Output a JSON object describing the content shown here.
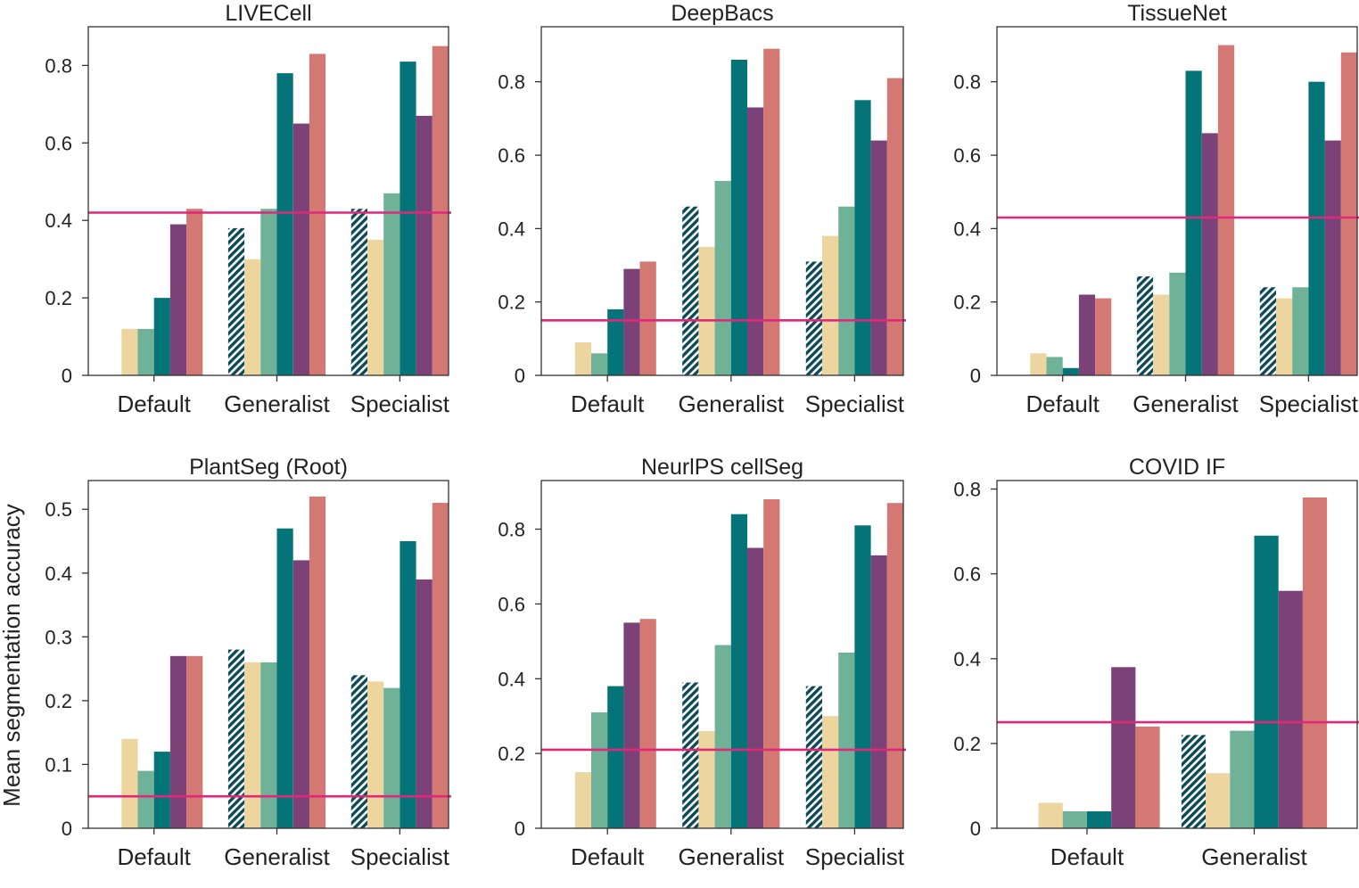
{
  "figure": {
    "ylabel": "Mean segmentation accuracy",
    "colors": {
      "hatched": "#0d4a57",
      "c1": "#ecd59e",
      "c2": "#6fb298",
      "c3": "#047478",
      "c4": "#7a4276",
      "c5": "#d47874",
      "baseline": "#e0287a",
      "axis": "#333333"
    }
  },
  "chart_data": [
    {
      "type": "bar",
      "title": "LIVECell",
      "categories": [
        "Default",
        "Generalist",
        "Specialist"
      ],
      "ylim": [
        0,
        0.9
      ],
      "yticks": [
        0,
        0.2,
        0.4,
        0.6,
        0.8
      ],
      "ytick_labels": [
        "0",
        "0.2",
        "0.4",
        "0.6",
        "0.8"
      ],
      "baseline": 0.42,
      "series": [
        {
          "name": "hatched",
          "values": [
            null,
            0.38,
            0.43
          ]
        },
        {
          "name": "c1",
          "values": [
            0.12,
            0.3,
            0.35
          ]
        },
        {
          "name": "c2",
          "values": [
            0.12,
            0.43,
            0.47
          ]
        },
        {
          "name": "c3",
          "values": [
            0.2,
            0.78,
            0.81
          ]
        },
        {
          "name": "c4",
          "values": [
            0.39,
            0.65,
            0.67
          ]
        },
        {
          "name": "c5",
          "values": [
            0.43,
            0.83,
            0.85
          ]
        }
      ]
    },
    {
      "type": "bar",
      "title": "DeepBacs",
      "categories": [
        "Default",
        "Generalist",
        "Specialist"
      ],
      "ylim": [
        0,
        0.95
      ],
      "yticks": [
        0,
        0.2,
        0.4,
        0.6,
        0.8
      ],
      "ytick_labels": [
        "0",
        "0.2",
        "0.4",
        "0.6",
        "0.8"
      ],
      "baseline": 0.15,
      "series": [
        {
          "name": "hatched",
          "values": [
            null,
            0.46,
            0.31
          ]
        },
        {
          "name": "c1",
          "values": [
            0.09,
            0.35,
            0.38
          ]
        },
        {
          "name": "c2",
          "values": [
            0.06,
            0.53,
            0.46
          ]
        },
        {
          "name": "c3",
          "values": [
            0.18,
            0.86,
            0.75
          ]
        },
        {
          "name": "c4",
          "values": [
            0.29,
            0.73,
            0.64
          ]
        },
        {
          "name": "c5",
          "values": [
            0.31,
            0.89,
            0.81
          ]
        }
      ]
    },
    {
      "type": "bar",
      "title": "TissueNet",
      "categories": [
        "Default",
        "Generalist",
        "Specialist"
      ],
      "ylim": [
        0,
        0.95
      ],
      "yticks": [
        0,
        0.2,
        0.4,
        0.6,
        0.8
      ],
      "ytick_labels": [
        "0",
        "0.2",
        "0.4",
        "0.6",
        "0.8"
      ],
      "baseline": 0.43,
      "series": [
        {
          "name": "hatched",
          "values": [
            null,
            0.27,
            0.24
          ]
        },
        {
          "name": "c1",
          "values": [
            0.06,
            0.22,
            0.21
          ]
        },
        {
          "name": "c2",
          "values": [
            0.05,
            0.28,
            0.24
          ]
        },
        {
          "name": "c3",
          "values": [
            0.02,
            0.83,
            0.8
          ]
        },
        {
          "name": "c4",
          "values": [
            0.22,
            0.66,
            0.64
          ]
        },
        {
          "name": "c5",
          "values": [
            0.21,
            0.9,
            0.88
          ]
        }
      ]
    },
    {
      "type": "bar",
      "title": "PlantSeg (Root)",
      "categories": [
        "Default",
        "Generalist",
        "Specialist"
      ],
      "ylim": [
        0,
        0.545
      ],
      "yticks": [
        0,
        0.1,
        0.2,
        0.3,
        0.4,
        0.5
      ],
      "ytick_labels": [
        "0",
        "0.1",
        "0.2",
        "0.3",
        "0.4",
        "0.5"
      ],
      "baseline": 0.05,
      "series": [
        {
          "name": "hatched",
          "values": [
            null,
            0.28,
            0.24
          ]
        },
        {
          "name": "c1",
          "values": [
            0.14,
            0.26,
            0.23
          ]
        },
        {
          "name": "c2",
          "values": [
            0.09,
            0.26,
            0.22
          ]
        },
        {
          "name": "c3",
          "values": [
            0.12,
            0.47,
            0.45
          ]
        },
        {
          "name": "c4",
          "values": [
            0.27,
            0.42,
            0.39
          ]
        },
        {
          "name": "c5",
          "values": [
            0.27,
            0.52,
            0.51
          ]
        }
      ]
    },
    {
      "type": "bar",
      "title": "NeurlPS cellSeg",
      "categories": [
        "Default",
        "Generalist",
        "Specialist"
      ],
      "ylim": [
        0,
        0.93
      ],
      "yticks": [
        0,
        0.2,
        0.4,
        0.6,
        0.8
      ],
      "ytick_labels": [
        "0",
        "0.2",
        "0.4",
        "0.6",
        "0.8"
      ],
      "baseline": 0.21,
      "series": [
        {
          "name": "hatched",
          "values": [
            null,
            0.39,
            0.38
          ]
        },
        {
          "name": "c1",
          "values": [
            0.15,
            0.26,
            0.3
          ]
        },
        {
          "name": "c2",
          "values": [
            0.31,
            0.49,
            0.47
          ]
        },
        {
          "name": "c3",
          "values": [
            0.38,
            0.84,
            0.81
          ]
        },
        {
          "name": "c4",
          "values": [
            0.55,
            0.75,
            0.73
          ]
        },
        {
          "name": "c5",
          "values": [
            0.56,
            0.88,
            0.87
          ]
        }
      ]
    },
    {
      "type": "bar",
      "title": "COVID IF",
      "categories": [
        "Default",
        "Generalist"
      ],
      "ylim": [
        0,
        0.82
      ],
      "yticks": [
        0,
        0.2,
        0.4,
        0.6,
        0.8
      ],
      "ytick_labels": [
        "0",
        "0.2",
        "0.4",
        "0.6",
        "0.8"
      ],
      "baseline": 0.25,
      "series": [
        {
          "name": "hatched",
          "values": [
            null,
            0.22
          ]
        },
        {
          "name": "c1",
          "values": [
            0.06,
            0.13
          ]
        },
        {
          "name": "c2",
          "values": [
            0.04,
            0.23
          ]
        },
        {
          "name": "c3",
          "values": [
            0.04,
            0.69
          ]
        },
        {
          "name": "c4",
          "values": [
            0.38,
            0.56
          ]
        },
        {
          "name": "c5",
          "values": [
            0.24,
            0.78
          ]
        }
      ]
    }
  ]
}
